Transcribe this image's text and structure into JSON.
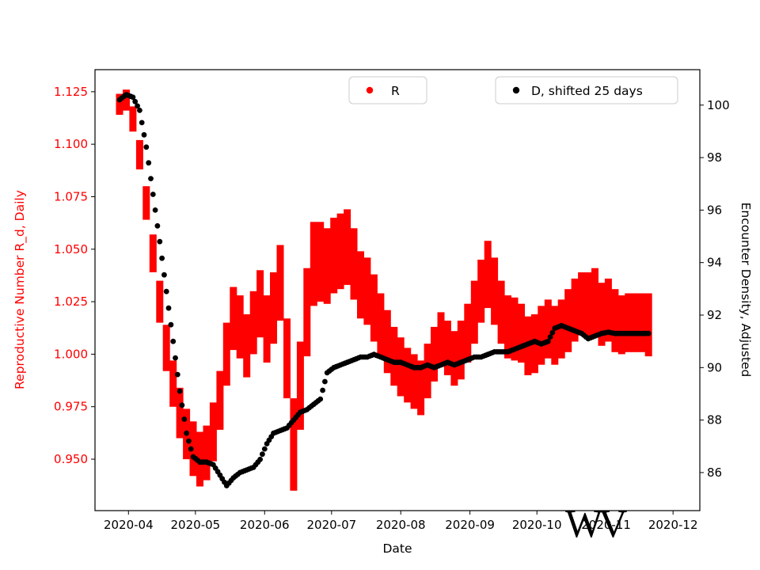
{
  "figure": {
    "watermark": "WV",
    "background": "#ffffff"
  },
  "legend": [
    {
      "label": "R",
      "marker_color": "#ff0000"
    },
    {
      "label": "D, shifted 25 days",
      "marker_color": "#000000"
    }
  ],
  "axes": {
    "x": {
      "label": "Date",
      "tick_labels": [
        "2020-04",
        "2020-05",
        "2020-06",
        "2020-07",
        "2020-08",
        "2020-09",
        "2020-10",
        "2020-11",
        "2020-12"
      ],
      "tick_dates": [
        "2020-04-01",
        "2020-05-01",
        "2020-06-01",
        "2020-07-01",
        "2020-08-01",
        "2020-09-01",
        "2020-10-01",
        "2020-11-01",
        "2020-12-01"
      ]
    },
    "y_left": {
      "label": "Reproductive Number R_d, Daily",
      "color": "#ff0000",
      "tick_labels": [
        "1.125",
        "1.100",
        "1.075",
        "1.050",
        "1.025",
        "1.000",
        "0.975",
        "0.950"
      ],
      "tick_values": [
        1.125,
        1.1,
        1.075,
        1.05,
        1.025,
        1.0,
        0.975,
        0.95
      ]
    },
    "y_right": {
      "label": "Encounter Density, Adjusted",
      "color": "#000000",
      "tick_labels": [
        "100",
        "98",
        "96",
        "94",
        "92",
        "90",
        "88",
        "86"
      ],
      "tick_values": [
        100,
        98,
        96,
        94,
        92,
        90,
        88,
        86
      ]
    }
  },
  "chart_data": {
    "type": "scatter",
    "title": "",
    "xlabel": "Date",
    "ylabel_left": "Reproductive Number R_d, Daily",
    "ylabel_right": "Encounter Density, Adjusted",
    "legend_entries": [
      "R",
      "D, shifted 25 days"
    ],
    "x_range": [
      "2020-03-17",
      "2020-12-13"
    ],
    "y_left_lim": [
      0.9255,
      1.1355
    ],
    "y_right_lim": [
      84.55,
      101.35
    ],
    "grid": false,
    "dates": [
      "2020-03-28",
      "2020-03-31",
      "2020-04-03",
      "2020-04-06",
      "2020-04-09",
      "2020-04-12",
      "2020-04-15",
      "2020-04-18",
      "2020-04-21",
      "2020-04-24",
      "2020-04-27",
      "2020-04-30",
      "2020-05-03",
      "2020-05-06",
      "2020-05-09",
      "2020-05-12",
      "2020-05-15",
      "2020-05-18",
      "2020-05-21",
      "2020-05-24",
      "2020-05-27",
      "2020-05-30",
      "2020-06-02",
      "2020-06-05",
      "2020-06-08",
      "2020-06-11",
      "2020-06-14",
      "2020-06-17",
      "2020-06-20",
      "2020-06-23",
      "2020-06-26",
      "2020-06-29",
      "2020-07-02",
      "2020-07-05",
      "2020-07-08",
      "2020-07-11",
      "2020-07-14",
      "2020-07-17",
      "2020-07-20",
      "2020-07-23",
      "2020-07-26",
      "2020-07-29",
      "2020-08-01",
      "2020-08-04",
      "2020-08-07",
      "2020-08-10",
      "2020-08-13",
      "2020-08-16",
      "2020-08-19",
      "2020-08-22",
      "2020-08-25",
      "2020-08-28",
      "2020-08-31",
      "2020-09-03",
      "2020-09-06",
      "2020-09-09",
      "2020-09-12",
      "2020-09-15",
      "2020-09-18",
      "2020-09-21",
      "2020-09-24",
      "2020-09-27",
      "2020-09-30",
      "2020-10-03",
      "2020-10-06",
      "2020-10-09",
      "2020-10-12",
      "2020-10-15",
      "2020-10-18",
      "2020-10-21",
      "2020-10-24",
      "2020-10-27",
      "2020-10-30",
      "2020-11-02",
      "2020-11-05",
      "2020-11-08",
      "2020-11-11",
      "2020-11-14",
      "2020-11-17",
      "2020-11-20"
    ],
    "series": [
      {
        "name": "R",
        "axis": "left",
        "color": "#ff0000",
        "style": "band",
        "center": [
          1.119,
          1.121,
          1.112,
          1.095,
          1.072,
          1.048,
          1.025,
          1.003,
          0.986,
          0.972,
          0.962,
          0.955,
          0.95,
          0.953,
          0.963,
          0.978,
          1.0,
          1.017,
          1.013,
          1.004,
          1.015,
          1.024,
          1.012,
          1.022,
          1.034,
          0.998,
          0.957,
          0.985,
          1.02,
          1.043,
          1.044,
          1.042,
          1.047,
          1.049,
          1.051,
          1.043,
          1.033,
          1.03,
          1.022,
          1.014,
          1.006,
          0.999,
          0.994,
          0.99,
          0.987,
          0.984,
          0.992,
          1.0,
          1.007,
          1.003,
          0.998,
          1.002,
          1.01,
          1.02,
          1.03,
          1.038,
          1.03,
          1.02,
          1.013,
          1.012,
          1.01,
          1.004,
          1.005,
          1.009,
          1.012,
          1.009,
          1.012,
          1.016,
          1.021,
          1.024,
          1.023,
          1.025,
          1.019,
          1.021,
          1.016,
          1.014,
          1.015,
          1.015,
          1.015,
          1.014
        ],
        "half_width": [
          0.005,
          0.005,
          0.006,
          0.007,
          0.008,
          0.009,
          0.01,
          0.011,
          0.011,
          0.012,
          0.012,
          0.013,
          0.013,
          0.013,
          0.014,
          0.014,
          0.015,
          0.015,
          0.015,
          0.015,
          0.015,
          0.016,
          0.016,
          0.017,
          0.018,
          0.019,
          0.022,
          0.021,
          0.021,
          0.02,
          0.019,
          0.018,
          0.018,
          0.018,
          0.018,
          0.017,
          0.016,
          0.016,
          0.016,
          0.015,
          0.015,
          0.014,
          0.014,
          0.013,
          0.013,
          0.013,
          0.013,
          0.013,
          0.013,
          0.013,
          0.013,
          0.014,
          0.014,
          0.015,
          0.015,
          0.016,
          0.016,
          0.015,
          0.015,
          0.015,
          0.014,
          0.014,
          0.014,
          0.014,
          0.014,
          0.014,
          0.014,
          0.015,
          0.015,
          0.015,
          0.016,
          0.016,
          0.015,
          0.015,
          0.015,
          0.014,
          0.014,
          0.014,
          0.014,
          0.015
        ]
      },
      {
        "name": "D, shifted 25 days",
        "axis": "right",
        "color": "#000000",
        "style": "dots",
        "values": [
          100.2,
          100.4,
          100.3,
          99.8,
          98.4,
          96.6,
          94.8,
          92.9,
          91.0,
          89.1,
          87.5,
          86.6,
          86.4,
          86.4,
          86.3,
          85.9,
          85.5,
          85.8,
          86.0,
          86.1,
          86.2,
          86.5,
          87.1,
          87.5,
          87.6,
          87.7,
          88.0,
          88.3,
          88.4,
          88.6,
          88.8,
          89.8,
          90.0,
          90.1,
          90.2,
          90.3,
          90.4,
          90.4,
          90.5,
          90.4,
          90.3,
          90.2,
          90.2,
          90.1,
          90.0,
          90.0,
          90.1,
          90.0,
          90.1,
          90.2,
          90.1,
          90.2,
          90.3,
          90.4,
          90.4,
          90.5,
          90.6,
          90.6,
          90.6,
          90.7,
          90.8,
          90.9,
          91.0,
          90.9,
          91.0,
          91.5,
          91.6,
          91.5,
          91.4,
          91.3,
          91.1,
          91.2,
          91.3,
          91.35,
          91.3,
          91.3,
          91.3,
          91.3,
          91.3,
          91.3
        ]
      }
    ]
  }
}
